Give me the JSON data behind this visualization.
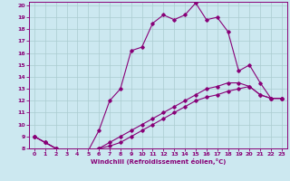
{
  "xlabel": "Windchill (Refroidissement éolien,°C)",
  "bg_color": "#cce8f0",
  "line_color": "#880077",
  "grid_color": "#aaccd0",
  "xlim": [
    -0.5,
    23.5
  ],
  "ylim": [
    8,
    20.3
  ],
  "xticks": [
    0,
    1,
    2,
    3,
    4,
    5,
    6,
    7,
    8,
    9,
    10,
    11,
    12,
    13,
    14,
    15,
    16,
    17,
    18,
    19,
    20,
    21,
    22,
    23
  ],
  "yticks": [
    8,
    9,
    10,
    11,
    12,
    13,
    14,
    15,
    16,
    17,
    18,
    19,
    20
  ],
  "series": [
    [
      9.0,
      8.5,
      8.0,
      7.8,
      7.8,
      7.8,
      9.5,
      12.0,
      13.0,
      16.2,
      16.5,
      18.5,
      19.2,
      18.8,
      19.2,
      20.2,
      18.8,
      19.0,
      17.8,
      14.5,
      15.0,
      13.5,
      12.2,
      12.2
    ],
    [
      9.0,
      8.5,
      8.0,
      7.8,
      7.8,
      7.8,
      8.0,
      8.2,
      8.5,
      9.0,
      9.5,
      10.0,
      10.5,
      11.0,
      11.5,
      12.0,
      12.3,
      12.5,
      12.8,
      13.0,
      13.2,
      12.5,
      12.2,
      12.2
    ],
    [
      9.0,
      8.5,
      8.0,
      7.8,
      7.8,
      7.8,
      8.0,
      8.5,
      9.0,
      9.5,
      10.0,
      10.5,
      11.0,
      11.5,
      12.0,
      12.5,
      13.0,
      13.2,
      13.5,
      13.5,
      13.2,
      12.5,
      12.2,
      12.2
    ]
  ]
}
